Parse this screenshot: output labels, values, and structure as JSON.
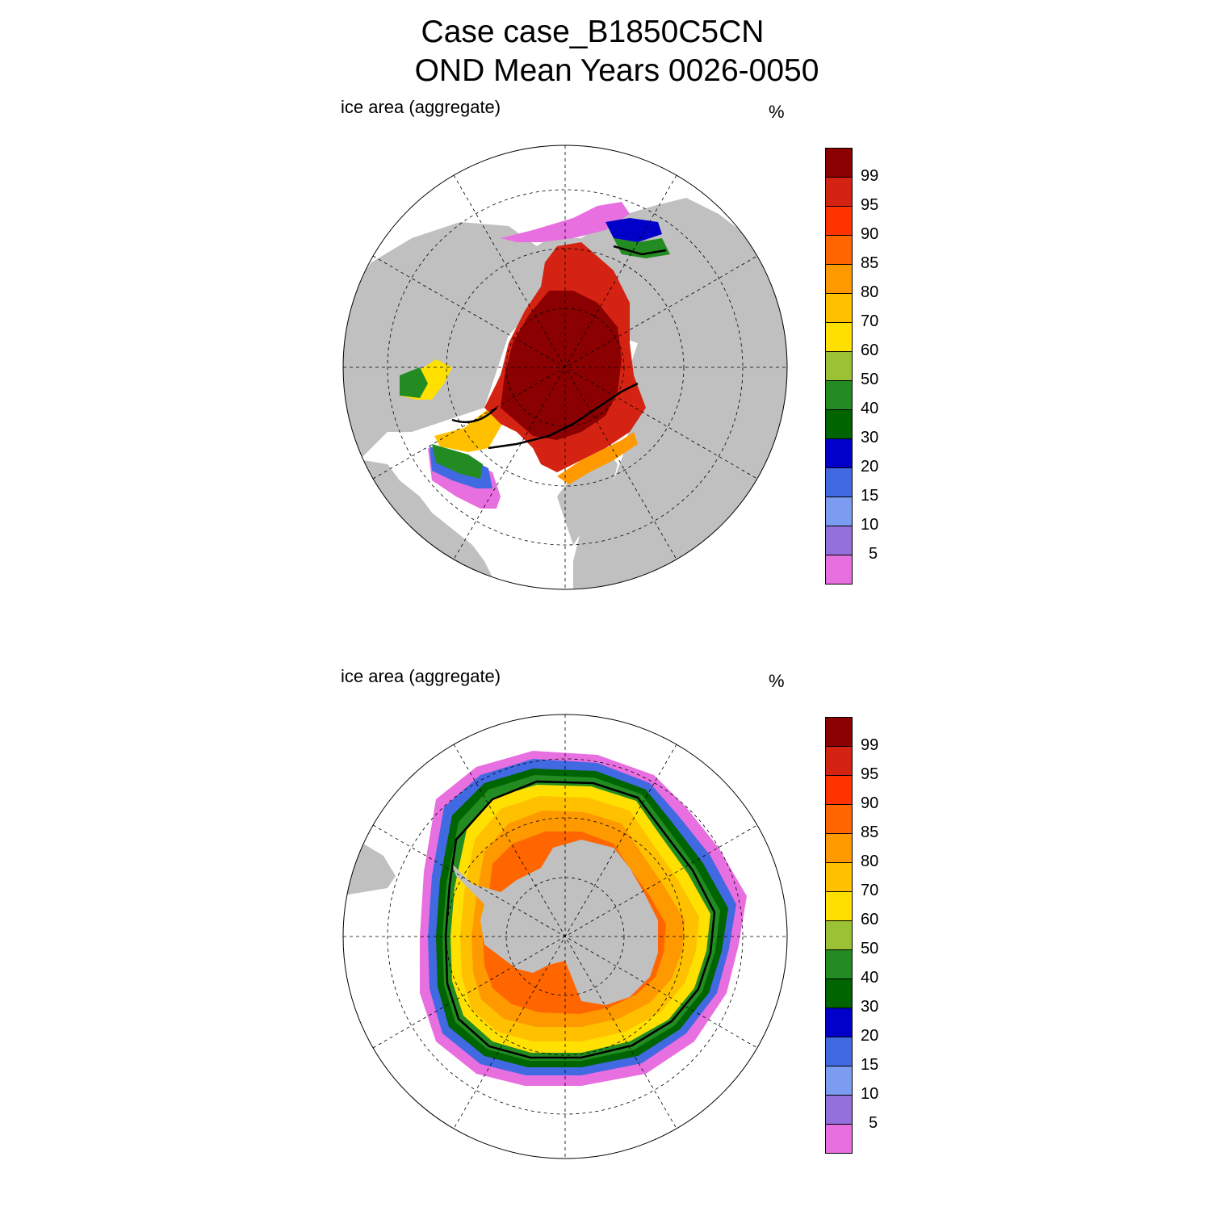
{
  "title": {
    "line1": "Case case_B1850C5CN",
    "line2": "OND Mean   Years 0026-0050"
  },
  "panels": [
    {
      "id": "north",
      "label": "ice area  (aggregate)",
      "units": "%",
      "hemisphere": "Arctic (North Polar Stereographic)"
    },
    {
      "id": "south",
      "label": "ice area  (aggregate)",
      "units": "%",
      "hemisphere": "Antarctic (South Polar Stereographic)"
    }
  ],
  "colorbar": {
    "labels": [
      "99",
      "95",
      "90",
      "85",
      "80",
      "70",
      "60",
      "50",
      "40",
      "30",
      "20",
      "15",
      "10",
      "5"
    ],
    "colors": [
      "#8b0000",
      "#d42312",
      "#ff3300",
      "#ff6600",
      "#ff9900",
      "#ffc000",
      "#ffe000",
      "#9bc134",
      "#228b22",
      "#006400",
      "#0000c8",
      "#4169e1",
      "#7b9cf0",
      "#9370db",
      "#e86fdf"
    ]
  },
  "colors": {
    "land": "#c0c0c0",
    "ocean": "#ffffff",
    "contour": "#000000"
  }
}
